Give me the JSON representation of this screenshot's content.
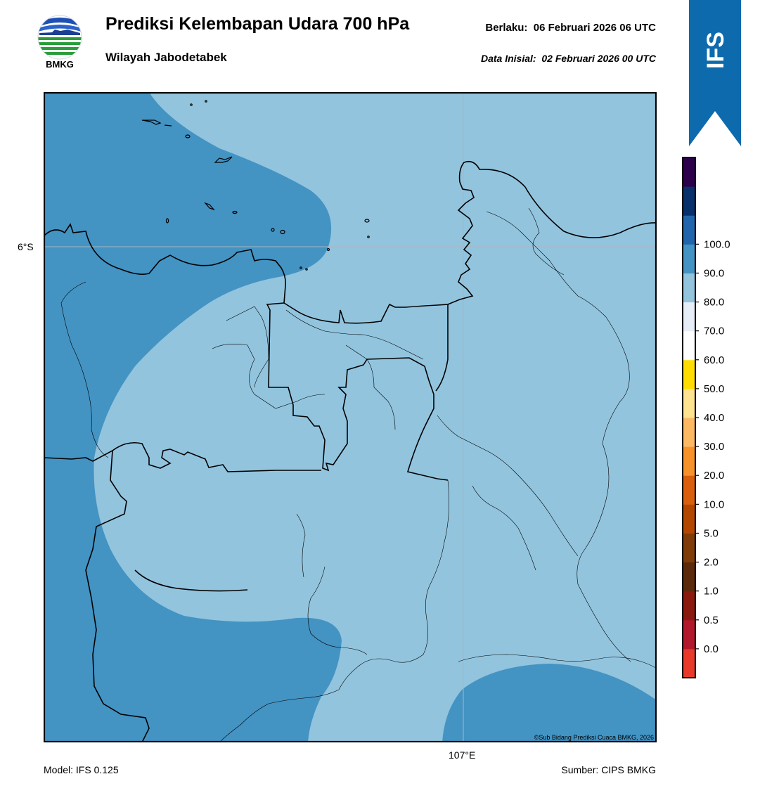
{
  "header": {
    "logo_text": "BMKG",
    "title": "Prediksi Kelembapan Udara 700 hPa",
    "region": "Wilayah Jabodetabek",
    "valid_label": "Berlaku:",
    "valid_time": "06 Februari 2026 06 UTC",
    "init_label": "Data Inisial:",
    "init_time": "02 Februari 2026 00 UTC"
  },
  "badge": {
    "text": "IFS"
  },
  "map": {
    "lat_label": "6°S",
    "lon_label": "107°E",
    "copyright": "©Sub Bidang Prediksi Cuaca BMKG, 2026"
  },
  "footer": {
    "model": "Model: IFS 0.125",
    "source": "Sumber: CIPS BMKG"
  },
  "colors": {
    "rh_60_70": "#92c4de",
    "rh_70_80": "#4393c3",
    "ribbon": "#0d6aad",
    "land_border": "#000000"
  },
  "colorbar": {
    "tick_labels": [
      "0.0",
      "0.5",
      "1.0",
      "2.0",
      "5.0",
      "10.0",
      "20.0",
      "30.0",
      "40.0",
      "50.0",
      "60.0",
      "70.0",
      "80.0",
      "90.0",
      "100.0"
    ],
    "bins_bottom_to_top": [
      "#e8392b",
      "#b2182b",
      "#8b1a0e",
      "#5a2a0a",
      "#7f3b08",
      "#b34700",
      "#d95f0e",
      "#f7922b",
      "#fdb863",
      "#fee391",
      "#ffdd00",
      "#ffffff",
      "#e8eef7",
      "#92c4de",
      "#4393c3",
      "#2166ac",
      "#08306b",
      "#2d004b"
    ]
  }
}
